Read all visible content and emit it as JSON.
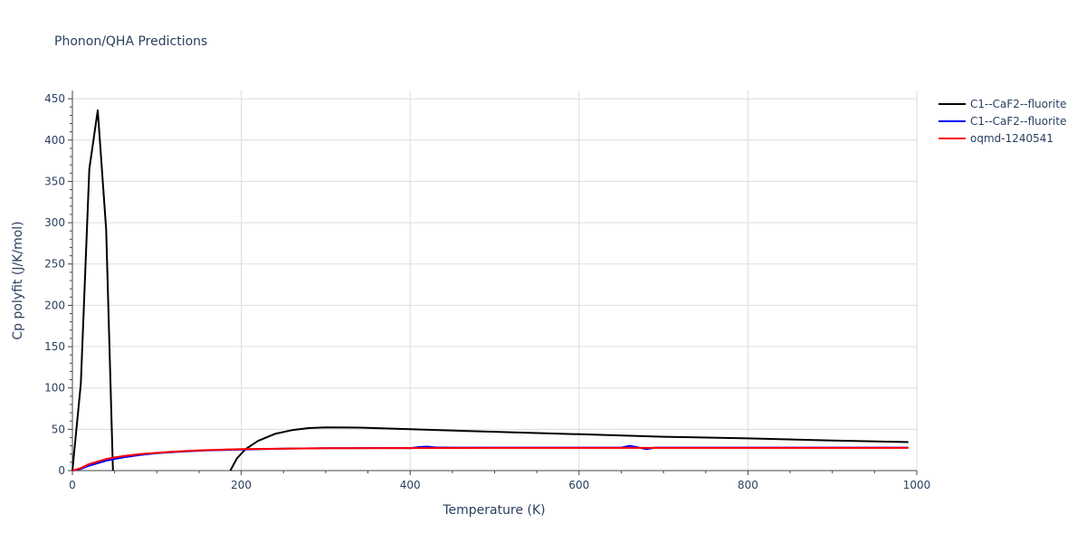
{
  "chart_data": {
    "type": "line",
    "title": "Phonon/QHA Predictions",
    "xlabel": "Temperature (K)",
    "ylabel": "Cp polyfit (J/K/mol)",
    "xlim": [
      0,
      1000
    ],
    "ylim": [
      0,
      460
    ],
    "xticks": [
      0,
      200,
      400,
      600,
      800,
      1000
    ],
    "yticks": [
      0,
      50,
      100,
      150,
      200,
      250,
      300,
      350,
      400,
      450
    ],
    "grid": true,
    "legend_position": "top-right",
    "series": [
      {
        "name": "C1--CaF2--fluorite",
        "color": "#000000",
        "segments": [
          [
            [
              0,
              0
            ],
            [
              10,
              105
            ],
            [
              20,
              365
            ],
            [
              30,
              436
            ],
            [
              40,
              292
            ],
            [
              48,
              0
            ]
          ],
          [
            [
              187,
              0
            ],
            [
              195,
              15
            ],
            [
              205,
              26
            ],
            [
              220,
              36
            ],
            [
              240,
              44.5
            ],
            [
              260,
              49
            ],
            [
              280,
              51.5
            ],
            [
              300,
              52.3
            ],
            [
              340,
              52
            ],
            [
              400,
              50
            ],
            [
              500,
              47
            ],
            [
              600,
              44
            ],
            [
              700,
              41
            ],
            [
              800,
              39
            ],
            [
              900,
              36.5
            ],
            [
              990,
              34.5
            ]
          ]
        ]
      },
      {
        "name": "C1--CaF2--fluorite",
        "color": "#0000ff",
        "segments": [
          [
            [
              0,
              0
            ],
            [
              10,
              2
            ],
            [
              20,
              6
            ],
            [
              30,
              9
            ],
            [
              40,
              12
            ],
            [
              50,
              14
            ],
            [
              60,
              16
            ],
            [
              80,
              19
            ],
            [
              100,
              21
            ],
            [
              120,
              22.5
            ],
            [
              140,
              23.5
            ],
            [
              160,
              24.5
            ],
            [
              180,
              25
            ],
            [
              200,
              25.5
            ],
            [
              250,
              26.5
            ],
            [
              300,
              27
            ],
            [
              350,
              27.3
            ],
            [
              390,
              27.3
            ],
            [
              400,
              27
            ],
            [
              410,
              28.5
            ],
            [
              420,
              29
            ],
            [
              430,
              28
            ],
            [
              450,
              27.8
            ],
            [
              500,
              27.8
            ],
            [
              600,
              27.8
            ],
            [
              650,
              27.8
            ],
            [
              660,
              30
            ],
            [
              670,
              28
            ],
            [
              680,
              26
            ],
            [
              690,
              27.8
            ],
            [
              800,
              27.8
            ],
            [
              990,
              27.8
            ]
          ]
        ]
      },
      {
        "name": "oqmd-1240541",
        "color": "#ff0000",
        "segments": [
          [
            [
              0,
              0
            ],
            [
              10,
              3
            ],
            [
              20,
              8
            ],
            [
              30,
              11
            ],
            [
              40,
              14
            ],
            [
              50,
              16
            ],
            [
              60,
              17.5
            ],
            [
              80,
              20
            ],
            [
              100,
              21.5
            ],
            [
              120,
              23
            ],
            [
              150,
              24.5
            ],
            [
              180,
              25.5
            ],
            [
              200,
              26
            ],
            [
              250,
              26.5
            ],
            [
              300,
              27
            ],
            [
              400,
              27.3
            ],
            [
              500,
              27.5
            ],
            [
              600,
              27.5
            ],
            [
              680,
              27.5
            ],
            [
              800,
              27.5
            ],
            [
              990,
              27.5
            ]
          ]
        ]
      }
    ]
  }
}
